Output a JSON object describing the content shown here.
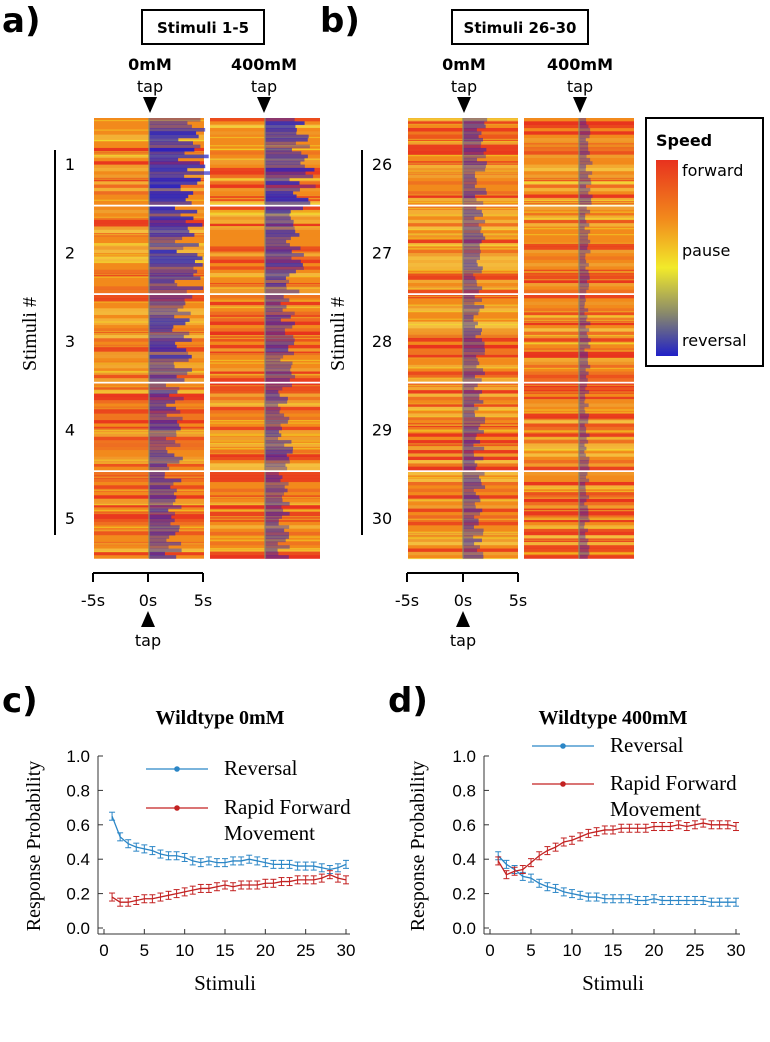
{
  "heatmaps": {
    "colormap_title": "Speed",
    "colormap_labels": [
      "forward",
      "pause",
      "reversal"
    ],
    "colors": {
      "forward": "#e8321e",
      "orange": "#f28a1c",
      "pause": "#f2ea2a",
      "mid": "#8a8a6a",
      "reversal": "#2020c8"
    },
    "tap_label": "tap",
    "stimuli_axis_label": "Stimuli #",
    "time_ticks": [
      "-5s",
      "0s",
      "5s"
    ],
    "panels": [
      {
        "letter": "a)",
        "title": "Stimuli 1-5",
        "conditions": [
          "0mM",
          "400mM"
        ],
        "stimuli": [
          "1",
          "2",
          "3",
          "4",
          "5"
        ],
        "reversal_strength_0mM": [
          1.0,
          0.85,
          0.7,
          0.55,
          0.5
        ],
        "reversal_strength_400mM": [
          0.8,
          0.6,
          0.45,
          0.4,
          0.35
        ]
      },
      {
        "letter": "b)",
        "title": "Stimuli 26-30",
        "conditions": [
          "0mM",
          "400mM"
        ],
        "stimuli": [
          "26",
          "27",
          "28",
          "29",
          "30"
        ],
        "reversal_strength_0mM": [
          0.35,
          0.3,
          0.3,
          0.3,
          0.3
        ],
        "reversal_strength_400mM": [
          0.15,
          0.12,
          0.12,
          0.1,
          0.1
        ]
      }
    ]
  },
  "chart_data": [
    {
      "type": "line",
      "panel": "c)",
      "title": "Wildtype 0mM",
      "xlabel": "Stimuli",
      "ylabel": "Response Probability",
      "xlim": [
        0,
        30
      ],
      "ylim": [
        0,
        1.0
      ],
      "xticks": [
        0,
        5,
        10,
        15,
        20,
        25,
        30
      ],
      "yticks": [
        0.0,
        0.2,
        0.4,
        0.6,
        0.8,
        1.0
      ],
      "x": [
        1,
        2,
        3,
        4,
        5,
        6,
        7,
        8,
        9,
        10,
        11,
        12,
        13,
        14,
        15,
        16,
        17,
        18,
        19,
        20,
        21,
        22,
        23,
        24,
        25,
        26,
        27,
        28,
        29,
        30
      ],
      "series": [
        {
          "name": "Reversal",
          "legend_lines": [
            "Reversal"
          ],
          "color": "#2b86c6",
          "values": [
            0.65,
            0.53,
            0.49,
            0.47,
            0.46,
            0.45,
            0.43,
            0.42,
            0.42,
            0.41,
            0.39,
            0.38,
            0.39,
            0.38,
            0.38,
            0.39,
            0.39,
            0.4,
            0.39,
            0.38,
            0.37,
            0.37,
            0.37,
            0.36,
            0.36,
            0.36,
            0.35,
            0.34,
            0.35,
            0.37
          ]
        },
        {
          "name": "Rapid Forward Movement",
          "legend_lines": [
            "Rapid Forward",
            "Movement"
          ],
          "color": "#c32222",
          "values": [
            0.18,
            0.15,
            0.15,
            0.16,
            0.17,
            0.17,
            0.18,
            0.19,
            0.2,
            0.21,
            0.22,
            0.23,
            0.23,
            0.24,
            0.25,
            0.24,
            0.25,
            0.25,
            0.25,
            0.26,
            0.26,
            0.27,
            0.27,
            0.28,
            0.28,
            0.28,
            0.29,
            0.31,
            0.29,
            0.28
          ]
        }
      ]
    },
    {
      "type": "line",
      "panel": "d)",
      "title": "Wildtype 400mM",
      "xlabel": "Stimuli",
      "ylabel": "Response Probability",
      "xlim": [
        0,
        30
      ],
      "ylim": [
        0,
        1.0
      ],
      "xticks": [
        0,
        5,
        10,
        15,
        20,
        25,
        30
      ],
      "yticks": [
        0.0,
        0.2,
        0.4,
        0.6,
        0.8,
        1.0
      ],
      "x": [
        1,
        2,
        3,
        4,
        5,
        6,
        7,
        8,
        9,
        10,
        11,
        12,
        13,
        14,
        15,
        16,
        17,
        18,
        19,
        20,
        21,
        22,
        23,
        24,
        25,
        26,
        27,
        28,
        29,
        30
      ],
      "series": [
        {
          "name": "Reversal",
          "legend_lines": [
            "Reversal"
          ],
          "color": "#2b86c6",
          "values": [
            0.42,
            0.37,
            0.34,
            0.3,
            0.29,
            0.26,
            0.24,
            0.23,
            0.21,
            0.2,
            0.19,
            0.18,
            0.18,
            0.17,
            0.17,
            0.17,
            0.17,
            0.16,
            0.16,
            0.17,
            0.16,
            0.16,
            0.16,
            0.16,
            0.16,
            0.16,
            0.15,
            0.15,
            0.15,
            0.15
          ]
        },
        {
          "name": "Rapid Forward Movement",
          "legend_lines": [
            "Rapid Forward",
            "Movement"
          ],
          "color": "#c32222",
          "values": [
            0.39,
            0.31,
            0.33,
            0.34,
            0.38,
            0.42,
            0.45,
            0.47,
            0.5,
            0.51,
            0.53,
            0.55,
            0.56,
            0.57,
            0.57,
            0.58,
            0.58,
            0.58,
            0.58,
            0.59,
            0.59,
            0.59,
            0.6,
            0.59,
            0.6,
            0.61,
            0.6,
            0.6,
            0.6,
            0.59
          ]
        }
      ]
    }
  ]
}
